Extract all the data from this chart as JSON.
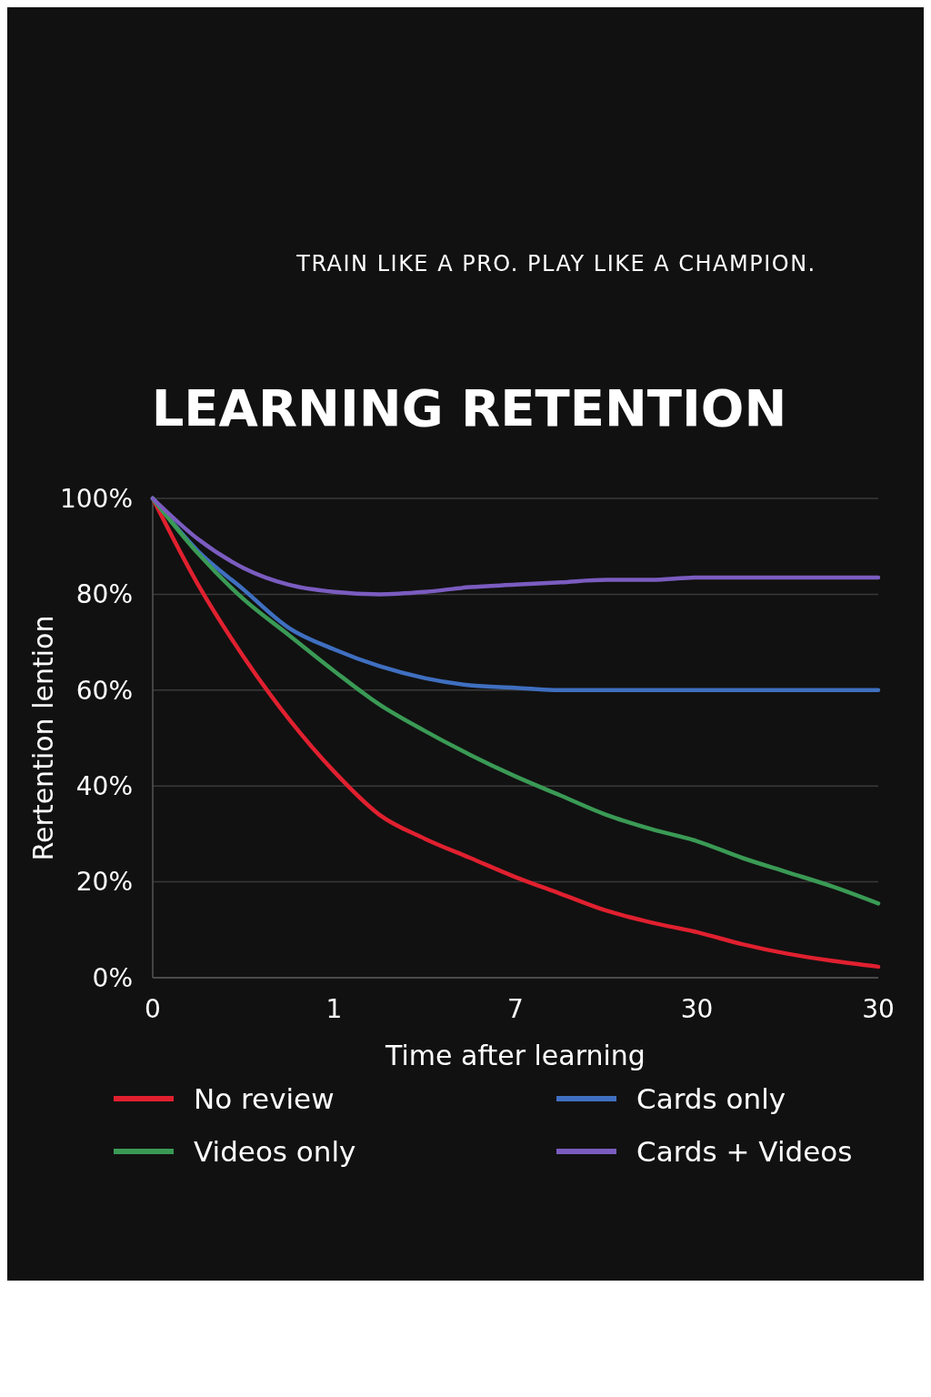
{
  "chart_data": {
    "type": "line",
    "title": "LEARNING RETENTION",
    "annotations": [
      "TRAIN LIKE A PRO. PLAY LIKE A CHAMPION."
    ],
    "xlabel": "Time after learning",
    "ylabel": "Rertention lention",
    "categories": [
      "0",
      null,
      null,
      null,
      "1",
      null,
      null,
      null,
      "7",
      null,
      null,
      null,
      "30",
      null,
      null,
      null,
      "30"
    ],
    "ylim": [
      0,
      100
    ],
    "yticks": [
      {
        "value": 0,
        "label": "0%"
      },
      {
        "value": 20,
        "label": "20%"
      },
      {
        "value": 40,
        "label": "40%"
      },
      {
        "value": 60,
        "label": "60%"
      },
      {
        "value": 80,
        "label": "80%"
      },
      {
        "value": 100,
        "label": "100%"
      }
    ],
    "grid": "y",
    "legend": "bottom",
    "line_style": "solid",
    "series": [
      {
        "name": "No review",
        "color": "#e0202f",
        "values": [
          100,
          82,
          67,
          54,
          43,
          34,
          29,
          25,
          21,
          17.5,
          14,
          11.5,
          9.5,
          7,
          5,
          3.5,
          2.3
        ]
      },
      {
        "name": "Cards only",
        "color": "#3f6fc0",
        "values": [
          100,
          89,
          81,
          73,
          68.5,
          65,
          62.5,
          61,
          60.5,
          60,
          60,
          60,
          60,
          60,
          60,
          60,
          60
        ]
      },
      {
        "name": "Videos only",
        "color": "#3a9a55",
        "values": [
          100,
          88.5,
          79,
          71.5,
          64,
          57,
          51.5,
          46.5,
          42,
          38,
          34,
          31,
          28.5,
          25,
          22,
          19,
          15.5
        ]
      },
      {
        "name": "Cards + Videos",
        "color": "#7b5cc0",
        "values": [
          100,
          91.5,
          85.5,
          82,
          80.5,
          80,
          80.5,
          81.5,
          82,
          82.5,
          83,
          83,
          83.5,
          83.5,
          83.5,
          83.5,
          83.5
        ]
      }
    ]
  }
}
